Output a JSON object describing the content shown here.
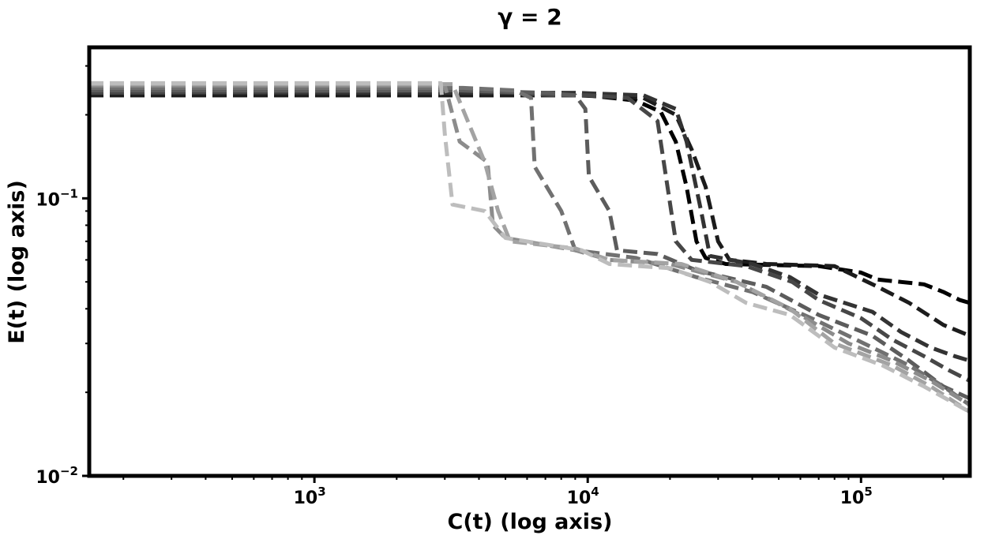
{
  "chart_data": {
    "type": "line",
    "title": "γ = 2",
    "xlabel": "C(t) (log axis)",
    "ylabel": "E(t) (log axis)",
    "xscale": "log",
    "yscale": "log",
    "xlim": [
      150,
      250000
    ],
    "ylim": [
      0.01,
      0.35
    ],
    "xticks": [
      {
        "base": "10",
        "exp": "3",
        "value": 1000
      },
      {
        "base": "10",
        "exp": "4",
        "value": 10000
      },
      {
        "base": "10",
        "exp": "5",
        "value": 100000
      }
    ],
    "yticks": [
      {
        "base": "10",
        "exp": "−1",
        "value": 0.1
      },
      {
        "base": "10",
        "exp": "−2",
        "value": 0.01
      }
    ],
    "line_style": "dashed",
    "grid": false,
    "series": [
      {
        "color": "#000000",
        "points": [
          [
            150,
            0.235
          ],
          [
            10000,
            0.235
          ],
          [
            15000,
            0.225
          ],
          [
            18500,
            0.205
          ],
          [
            21000,
            0.16
          ],
          [
            23000,
            0.11
          ],
          [
            25000,
            0.07
          ],
          [
            27000,
            0.061
          ],
          [
            32000,
            0.058
          ],
          [
            70000,
            0.057
          ],
          [
            100000,
            0.054
          ],
          [
            115000,
            0.051
          ],
          [
            170000,
            0.049
          ],
          [
            200000,
            0.046
          ],
          [
            230000,
            0.043
          ],
          [
            250000,
            0.042
          ]
        ]
      },
      {
        "color": "#1c1c1c",
        "points": [
          [
            150,
            0.235
          ],
          [
            9000,
            0.235
          ],
          [
            16000,
            0.23
          ],
          [
            21000,
            0.2
          ],
          [
            24000,
            0.15
          ],
          [
            27000,
            0.11
          ],
          [
            30000,
            0.07
          ],
          [
            33000,
            0.06
          ],
          [
            45000,
            0.058
          ],
          [
            80000,
            0.057
          ],
          [
            115000,
            0.048
          ],
          [
            150000,
            0.042
          ],
          [
            200000,
            0.035
          ],
          [
            250000,
            0.032
          ]
        ]
      },
      {
        "color": "#333333",
        "points": [
          [
            150,
            0.24
          ],
          [
            9000,
            0.24
          ],
          [
            16000,
            0.235
          ],
          [
            21000,
            0.21
          ],
          [
            23000,
            0.16
          ],
          [
            26000,
            0.09
          ],
          [
            28000,
            0.062
          ],
          [
            40000,
            0.058
          ],
          [
            55000,
            0.052
          ],
          [
            70000,
            0.045
          ],
          [
            110000,
            0.039
          ],
          [
            140000,
            0.033
          ],
          [
            180000,
            0.029
          ],
          [
            220000,
            0.027
          ],
          [
            250000,
            0.026
          ]
        ]
      },
      {
        "color": "#474747",
        "points": [
          [
            150,
            0.24
          ],
          [
            3300,
            0.245
          ],
          [
            5500,
            0.24
          ],
          [
            7500,
            0.235
          ],
          [
            10000,
            0.235
          ],
          [
            14000,
            0.23
          ],
          [
            18000,
            0.19
          ],
          [
            21000,
            0.07
          ],
          [
            24000,
            0.06
          ],
          [
            38000,
            0.057
          ],
          [
            56000,
            0.05
          ],
          [
            70000,
            0.043
          ],
          [
            100000,
            0.037
          ],
          [
            130000,
            0.031
          ],
          [
            170000,
            0.027
          ],
          [
            210000,
            0.024
          ],
          [
            250000,
            0.022
          ]
        ]
      },
      {
        "color": "#5c5c5c",
        "points": [
          [
            150,
            0.245
          ],
          [
            3400,
            0.245
          ],
          [
            7000,
            0.24
          ],
          [
            9000,
            0.235
          ],
          [
            9800,
            0.21
          ],
          [
            10100,
            0.12
          ],
          [
            12000,
            0.09
          ],
          [
            12800,
            0.065
          ],
          [
            18000,
            0.063
          ],
          [
            25000,
            0.055
          ],
          [
            45000,
            0.048
          ],
          [
            70000,
            0.038
          ],
          [
            110000,
            0.032
          ],
          [
            150000,
            0.026
          ],
          [
            200000,
            0.021
          ],
          [
            250000,
            0.019
          ]
        ]
      },
      {
        "color": "#717171",
        "points": [
          [
            150,
            0.25
          ],
          [
            3500,
            0.25
          ],
          [
            5400,
            0.245
          ],
          [
            6200,
            0.23
          ],
          [
            6400,
            0.13
          ],
          [
            8000,
            0.09
          ],
          [
            9000,
            0.065
          ],
          [
            15000,
            0.061
          ],
          [
            25000,
            0.052
          ],
          [
            40000,
            0.046
          ],
          [
            70000,
            0.036
          ],
          [
            110000,
            0.029
          ],
          [
            150000,
            0.025
          ],
          [
            200000,
            0.021
          ],
          [
            250000,
            0.018
          ]
        ]
      },
      {
        "color": "#8c8c8c",
        "points": [
          [
            150,
            0.255
          ],
          [
            3000,
            0.255
          ],
          [
            3400,
            0.16
          ],
          [
            4300,
            0.135
          ],
          [
            4500,
            0.08
          ],
          [
            5000,
            0.072
          ],
          [
            9000,
            0.065
          ],
          [
            12000,
            0.06
          ],
          [
            20000,
            0.058
          ],
          [
            35000,
            0.05
          ],
          [
            60000,
            0.038
          ],
          [
            90000,
            0.03
          ],
          [
            130000,
            0.026
          ],
          [
            180000,
            0.022
          ],
          [
            250000,
            0.018
          ]
        ]
      },
      {
        "color": "#a3a3a3",
        "points": [
          [
            150,
            0.258
          ],
          [
            3200,
            0.258
          ],
          [
            4200,
            0.135
          ],
          [
            4700,
            0.09
          ],
          [
            5200,
            0.07
          ],
          [
            9000,
            0.066
          ],
          [
            12000,
            0.06
          ],
          [
            22000,
            0.058
          ],
          [
            35000,
            0.05
          ],
          [
            55000,
            0.04
          ],
          [
            80000,
            0.03
          ],
          [
            130000,
            0.025
          ],
          [
            180000,
            0.021
          ],
          [
            250000,
            0.017
          ]
        ]
      },
      {
        "color": "#bdbdbd",
        "points": [
          [
            150,
            0.26
          ],
          [
            2900,
            0.26
          ],
          [
            3000,
            0.17
          ],
          [
            3200,
            0.095
          ],
          [
            4200,
            0.09
          ],
          [
            5000,
            0.072
          ],
          [
            9500,
            0.065
          ],
          [
            12000,
            0.058
          ],
          [
            20000,
            0.056
          ],
          [
            28000,
            0.05
          ],
          [
            38000,
            0.042
          ],
          [
            55000,
            0.038
          ],
          [
            80000,
            0.029
          ],
          [
            120000,
            0.025
          ],
          [
            170000,
            0.021
          ],
          [
            250000,
            0.017
          ]
        ]
      }
    ]
  }
}
